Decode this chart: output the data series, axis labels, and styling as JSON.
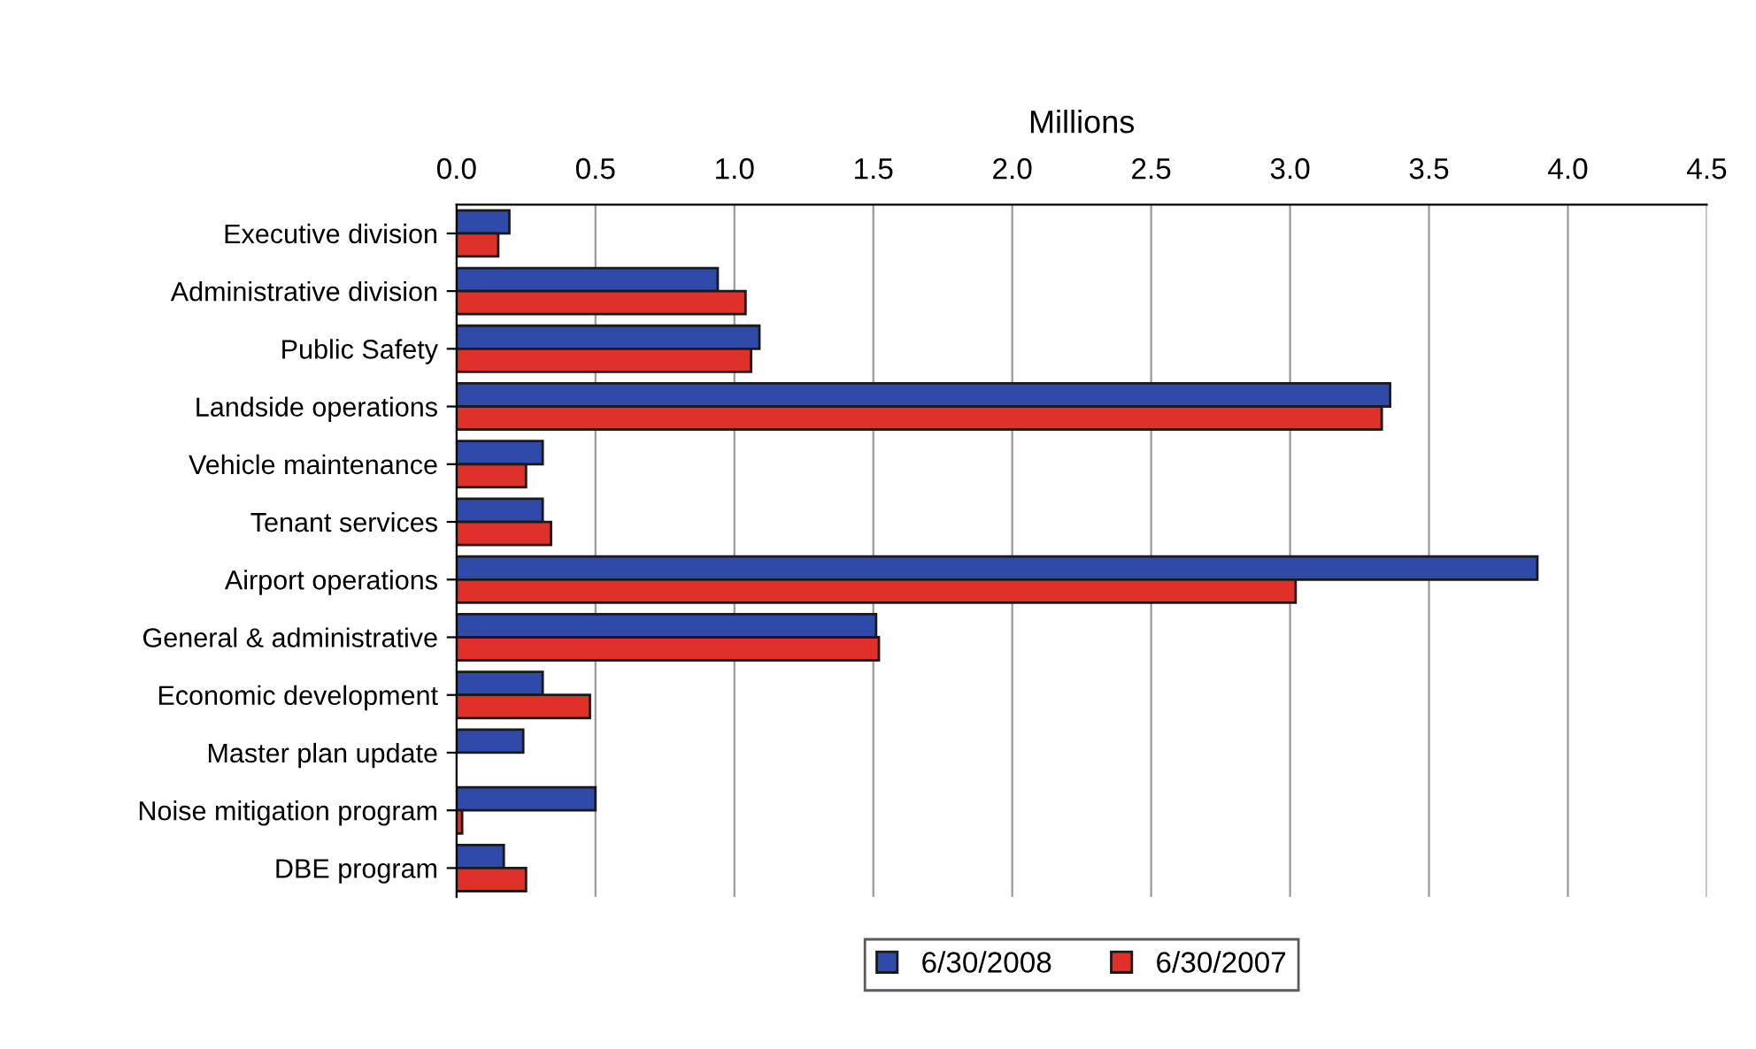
{
  "chart_data": {
    "type": "bar",
    "orientation": "horizontal",
    "xlabel": "Millions",
    "categories": [
      "Executive division",
      "Administrative division",
      "Public Safety",
      "Landside operations",
      "Vehicle maintenance",
      "Tenant services",
      "Airport operations",
      "General & administrative",
      "Economic development",
      "Master plan update",
      "Noise mitigation program",
      "DBE program"
    ],
    "series": [
      {
        "name": "6/30/2008",
        "color": "#2f4aa8",
        "values": [
          0.19,
          0.94,
          1.09,
          3.36,
          0.31,
          0.31,
          3.89,
          1.51,
          0.31,
          0.24,
          0.5,
          0.17
        ]
      },
      {
        "name": "6/30/2007",
        "color": "#e0302a",
        "values": [
          0.15,
          1.04,
          1.06,
          3.33,
          0.25,
          0.34,
          3.02,
          1.52,
          0.48,
          null,
          0.02,
          0.25
        ]
      }
    ],
    "xlim": [
      0,
      4.5
    ],
    "xticks": [
      {
        "value": 0,
        "label": "0.0"
      },
      0.5,
      {
        "value": 1,
        "label": "1.0"
      },
      1.5,
      {
        "value": 2,
        "label": "2.0"
      },
      2.5,
      {
        "value": 3,
        "label": "3.0"
      },
      3.5,
      {
        "value": 4,
        "label": "4.0"
      },
      4.5
    ],
    "grid": "x",
    "legend": "bottom"
  }
}
